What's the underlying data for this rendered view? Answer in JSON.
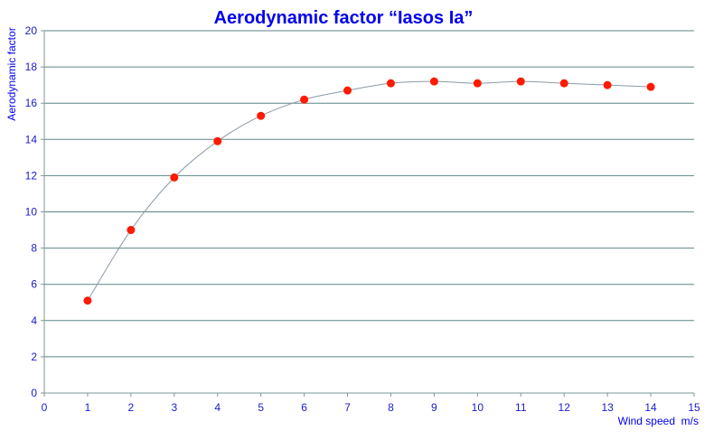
{
  "chart_data": {
    "type": "scatter",
    "title": "Aerodynamic factor “Iasos Ia”",
    "xlabel": "Wind speed  m/s",
    "ylabel": "Aerodynamic factor",
    "xlim": [
      0,
      15
    ],
    "ylim": [
      0,
      20
    ],
    "xticks": [
      "0",
      "1",
      "2",
      "3",
      "4",
      "5",
      "6",
      "7",
      "8",
      "9",
      "10",
      "11",
      "12",
      "13",
      "14",
      "15"
    ],
    "yticks": [
      "0",
      "2",
      "4",
      "6",
      "8",
      "10",
      "12",
      "14",
      "16",
      "18",
      "20"
    ],
    "grid": "horizontal",
    "legend": "none",
    "smoothed_line": true,
    "colors": {
      "points": "#ff1a00",
      "line": "#8a9aa8",
      "text": "#0000ee",
      "grid": "#5f8585"
    },
    "x": [
      1,
      2,
      3,
      4,
      5,
      6,
      7,
      8,
      9,
      10,
      11,
      12,
      13,
      14
    ],
    "y": [
      5.1,
      9.0,
      11.9,
      13.9,
      15.3,
      16.2,
      16.7,
      17.1,
      17.2,
      17.1,
      17.2,
      17.1,
      17.0,
      16.9
    ]
  }
}
